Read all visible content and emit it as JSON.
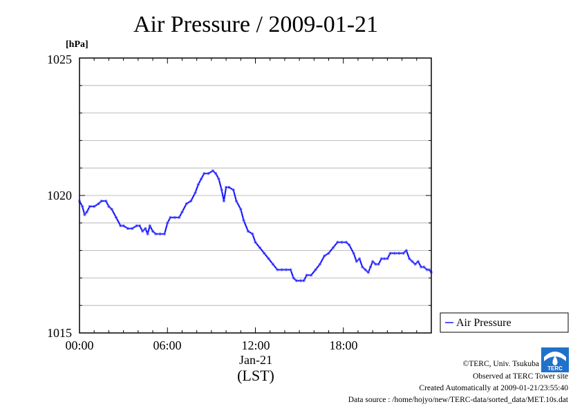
{
  "chart_data": {
    "type": "line",
    "title": "Air Pressure / 2009-01-21",
    "unit_label": "[hPa]",
    "ylim": [
      1015,
      1025
    ],
    "yticks": [
      "1015",
      "1020",
      "1025"
    ],
    "xlim_hours": [
      0,
      24
    ],
    "xticks": [
      "00:00",
      "06:00",
      "12:00",
      "18:00"
    ],
    "xsublabel": "Jan-21",
    "xlabel": "(LST)",
    "legend": "Air Pressure",
    "legend_position": "right",
    "grid": true,
    "series": [
      {
        "name": "Air Pressure",
        "color": "#1a1aff",
        "x": [
          0.0,
          0.2,
          0.35,
          0.5,
          0.7,
          1.0,
          1.3,
          1.5,
          1.8,
          2.0,
          2.2,
          2.5,
          2.8,
          3.0,
          3.3,
          3.6,
          3.9,
          4.1,
          4.3,
          4.5,
          4.65,
          4.8,
          5.0,
          5.2,
          5.5,
          5.8,
          6.0,
          6.2,
          6.5,
          6.8,
          7.0,
          7.3,
          7.6,
          7.9,
          8.1,
          8.3,
          8.5,
          8.8,
          9.1,
          9.3,
          9.5,
          9.7,
          9.85,
          10.0,
          10.2,
          10.5,
          10.7,
          11.0,
          11.2,
          11.5,
          11.8,
          12.0,
          12.3,
          12.6,
          12.9,
          13.2,
          13.5,
          13.8,
          14.1,
          14.4,
          14.6,
          14.8,
          15.1,
          15.3,
          15.5,
          15.8,
          16.1,
          16.4,
          16.7,
          17.0,
          17.3,
          17.6,
          17.9,
          18.2,
          18.4,
          18.7,
          18.9,
          19.1,
          19.3,
          19.5,
          19.7,
          19.85,
          20.0,
          20.2,
          20.4,
          20.6,
          20.8,
          21.0,
          21.2,
          21.5,
          21.8,
          22.1,
          22.3,
          22.5,
          22.7,
          22.9,
          23.1,
          23.3,
          23.5,
          23.7,
          23.85,
          24.0
        ],
        "values": [
          1019.8,
          1019.6,
          1019.3,
          1019.4,
          1019.6,
          1019.6,
          1019.7,
          1019.8,
          1019.8,
          1019.6,
          1019.5,
          1019.2,
          1018.9,
          1018.9,
          1018.8,
          1018.8,
          1018.9,
          1018.9,
          1018.7,
          1018.8,
          1018.6,
          1018.9,
          1018.7,
          1018.6,
          1018.6,
          1018.6,
          1019.0,
          1019.2,
          1019.2,
          1019.2,
          1019.4,
          1019.7,
          1019.8,
          1020.1,
          1020.4,
          1020.6,
          1020.8,
          1020.8,
          1020.9,
          1020.8,
          1020.6,
          1020.2,
          1019.8,
          1020.3,
          1020.3,
          1020.2,
          1019.8,
          1019.5,
          1019.1,
          1018.7,
          1018.6,
          1018.3,
          1018.1,
          1017.9,
          1017.7,
          1017.5,
          1017.3,
          1017.3,
          1017.3,
          1017.3,
          1017.0,
          1016.9,
          1016.9,
          1016.9,
          1017.1,
          1017.1,
          1017.3,
          1017.5,
          1017.8,
          1017.9,
          1018.1,
          1018.3,
          1018.3,
          1018.3,
          1018.2,
          1017.9,
          1017.6,
          1017.7,
          1017.4,
          1017.3,
          1017.2,
          1017.4,
          1017.6,
          1017.5,
          1017.5,
          1017.7,
          1017.7,
          1017.7,
          1017.9,
          1017.9,
          1017.9,
          1017.9,
          1018.0,
          1017.7,
          1017.6,
          1017.5,
          1017.6,
          1017.4,
          1017.4,
          1017.3,
          1017.3,
          1017.2
        ]
      }
    ]
  },
  "credits": {
    "copyright": "©TERC, Univ. Tsukuba",
    "observed": "Observed at TERC Tower site",
    "created": "Created Automatically at 2009-01-21/23:55:40",
    "source": "Data source : /home/hojyo/new/TERC-data/sorted_data/MET.10s.dat",
    "logo_text": "TERC"
  }
}
